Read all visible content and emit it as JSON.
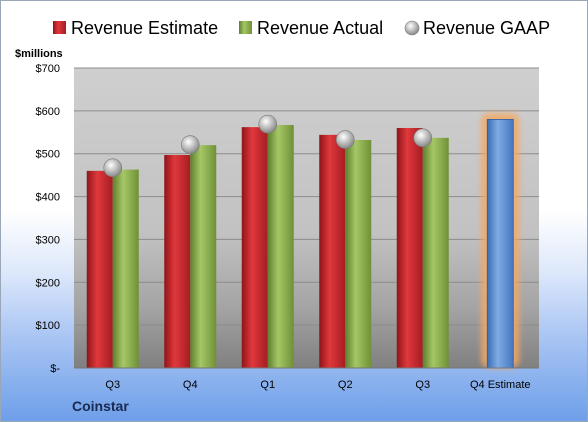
{
  "chart_data": {
    "type": "bar",
    "ylabel": "$millions",
    "ylim": [
      0,
      700
    ],
    "y_ticks": [
      "$-",
      "$100",
      "$200",
      "$300",
      "$400",
      "$500",
      "$600",
      "$700"
    ],
    "grid": true,
    "legend_position": "top",
    "categories": [
      "Q3",
      "Q4",
      "Q1",
      "Q2",
      "Q3",
      "Q4 Estimate"
    ],
    "series": [
      {
        "name": "Revenue Estimate",
        "type": "bar",
        "color": "#c0282d",
        "values": [
          460,
          497,
          562,
          544,
          560,
          null
        ]
      },
      {
        "name": "Revenue Actual",
        "type": "bar",
        "color": "#8db04a",
        "values": [
          463,
          520,
          567,
          532,
          537,
          null
        ]
      },
      {
        "name": "Revenue GAAP",
        "type": "marker",
        "color": "#b8b8b8",
        "values": [
          467,
          521,
          569,
          533,
          537,
          null
        ]
      }
    ],
    "estimate_bar": {
      "category": "Q4 Estimate",
      "value": 580,
      "color": "#5b8fd0",
      "highlight": "#f4a862"
    }
  },
  "footer": {
    "company": "Coinstar"
  }
}
